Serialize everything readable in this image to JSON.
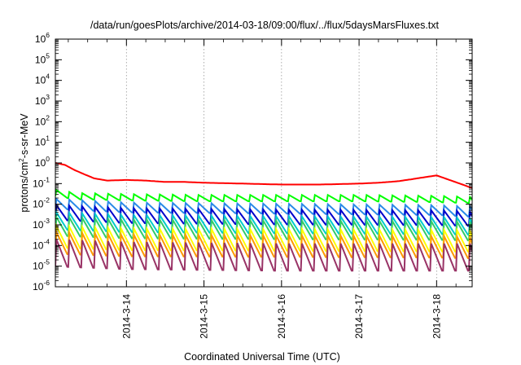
{
  "chart_data": {
    "type": "line",
    "title": "/data/run/goesPlots/archive/2014-03-18/09:00/flux/../flux/5daysMarsFluxes.txt",
    "xlabel": "Coordinated Universal Time (UTC)",
    "ylabel_main": "protons/cm",
    "ylabel_sup": "2",
    "ylabel_rest": "-s-sr-MeV",
    "xlim": [
      "2014-03-13T02:00",
      "2014-03-18T11:00"
    ],
    "ylim": [
      1e-06,
      1000000.0
    ],
    "yscale": "log",
    "grid": true,
    "legend": "none",
    "x_ticks": [
      {
        "label": "2014-3-14",
        "value": "2014-03-14"
      },
      {
        "label": "2014-3-15",
        "value": "2014-03-15"
      },
      {
        "label": "2014-3-16",
        "value": "2014-03-16"
      },
      {
        "label": "2014-3-17",
        "value": "2014-03-17"
      },
      {
        "label": "2014-3-18",
        "value": "2014-03-18"
      }
    ],
    "y_ticks": [
      {
        "base": "10",
        "exp": "-6",
        "value": 1e-06
      },
      {
        "base": "10",
        "exp": "-5",
        "value": 1e-05
      },
      {
        "base": "10",
        "exp": "-4",
        "value": 0.0001
      },
      {
        "base": "10",
        "exp": "-3",
        "value": 0.001
      },
      {
        "base": "10",
        "exp": "-2",
        "value": 0.01
      },
      {
        "base": "10",
        "exp": "-1",
        "value": 0.1
      },
      {
        "base": "10",
        "exp": "0",
        "value": 1
      },
      {
        "base": "10",
        "exp": "1",
        "value": 10
      },
      {
        "base": "10",
        "exp": "2",
        "value": 100
      },
      {
        "base": "10",
        "exp": "3",
        "value": 1000
      },
      {
        "base": "10",
        "exp": "4",
        "value": 10000
      },
      {
        "base": "10",
        "exp": "5",
        "value": 100000
      },
      {
        "base": "10",
        "exp": "6",
        "value": 1000000
      }
    ],
    "series": [
      {
        "color": "#ff0000",
        "x": [
          "2014-03-13T02:00",
          "2014-03-13T05:00",
          "2014-03-13T08:00",
          "2014-03-13T11:00",
          "2014-03-13T14:00",
          "2014-03-13T18:00",
          "2014-03-14T00:00",
          "2014-03-14T06:00",
          "2014-03-14T12:00",
          "2014-03-14T18:00",
          "2014-03-15T00:00",
          "2014-03-15T12:00",
          "2014-03-16T00:00",
          "2014-03-16T12:00",
          "2014-03-17T00:00",
          "2014-03-17T06:00",
          "2014-03-17T12:00",
          "2014-03-17T16:00",
          "2014-03-17T20:00",
          "2014-03-18T00:00",
          "2014-03-18T04:00",
          "2014-03-18T08:00",
          "2014-03-18T11:00"
        ],
        "values": [
          1.0,
          0.8,
          0.45,
          0.28,
          0.18,
          0.14,
          0.15,
          0.14,
          0.12,
          0.12,
          0.11,
          0.1,
          0.09,
          0.09,
          0.1,
          0.11,
          0.13,
          0.16,
          0.2,
          0.25,
          0.15,
          0.09,
          0.06
        ],
        "zigzag": {
          "period_h": 4,
          "high": 1.0,
          "low": 1.0
        }
      },
      {
        "color": "#00ff00",
        "x": [
          "2014-03-13T02:00",
          "2014-03-13T08:00",
          "2014-03-14T00:00",
          "2014-03-15T00:00",
          "2014-03-16T00:00",
          "2014-03-17T00:00",
          "2014-03-18T00:00",
          "2014-03-18T11:00"
        ],
        "values": [
          0.035,
          0.025,
          0.022,
          0.02,
          0.02,
          0.02,
          0.018,
          0.016
        ],
        "zigzag": {
          "period_h": 4,
          "high": 1.4,
          "low": 0.7
        }
      },
      {
        "color": "#2a8ae8",
        "x": [
          "2014-03-13T02:00",
          "2014-03-14T00:00",
          "2014-03-16T00:00",
          "2014-03-18T00:00",
          "2014-03-18T11:00"
        ],
        "values": [
          0.012,
          0.008,
          0.007,
          0.006,
          0.005
        ],
        "zigzag": {
          "period_h": 4,
          "high": 1.5,
          "low": 0.5
        }
      },
      {
        "color": "#0000cc",
        "x": [
          "2014-03-13T02:00",
          "2014-03-14T00:00",
          "2014-03-16T00:00",
          "2014-03-18T00:00",
          "2014-03-18T11:00"
        ],
        "values": [
          0.005,
          0.0035,
          0.003,
          0.0028,
          0.0025
        ],
        "zigzag": {
          "period_h": 4,
          "high": 1.8,
          "low": 0.35
        }
      },
      {
        "color": "#00cccc",
        "x": [
          "2014-03-13T02:00",
          "2014-03-14T00:00",
          "2014-03-16T00:00",
          "2014-03-18T00:00",
          "2014-03-18T11:00"
        ],
        "values": [
          0.002,
          0.0015,
          0.0013,
          0.0012,
          0.0011
        ],
        "zigzag": {
          "period_h": 4,
          "high": 2.0,
          "low": 0.3
        }
      },
      {
        "color": "#33cc66",
        "x": [
          "2014-03-13T02:00",
          "2014-03-14T00:00",
          "2014-03-16T00:00",
          "2014-03-18T00:00",
          "2014-03-18T11:00"
        ],
        "values": [
          0.0012,
          0.0009,
          0.0008,
          0.00075,
          0.0007
        ],
        "zigzag": {
          "period_h": 4,
          "high": 2.0,
          "low": 0.25
        }
      },
      {
        "color": "#ffff00",
        "x": [
          "2014-03-13T02:00",
          "2014-03-14T00:00",
          "2014-03-16T00:00",
          "2014-03-18T00:00",
          "2014-03-18T11:00"
        ],
        "values": [
          0.0004,
          0.0003,
          0.00028,
          0.00026,
          0.00025
        ],
        "zigzag": {
          "period_h": 4,
          "high": 2.2,
          "low": 0.2
        }
      },
      {
        "color": "#ff9900",
        "x": [
          "2014-03-13T02:00",
          "2014-03-14T00:00",
          "2014-03-16T00:00",
          "2014-03-18T00:00",
          "2014-03-18T11:00"
        ],
        "values": [
          0.0002,
          0.00015,
          0.00014,
          0.00013,
          0.00012
        ],
        "zigzag": {
          "period_h": 4,
          "high": 2.2,
          "low": 0.2
        }
      },
      {
        "color": "#993366",
        "x": [
          "2014-03-13T02:00",
          "2014-03-14T00:00",
          "2014-03-16T00:00",
          "2014-03-18T00:00",
          "2014-03-18T11:00"
        ],
        "values": [
          8e-05,
          6e-05,
          5e-05,
          5e-05,
          5e-05
        ],
        "zigzag": {
          "period_h": 4,
          "high": 2.5,
          "low": 0.12
        }
      }
    ]
  }
}
